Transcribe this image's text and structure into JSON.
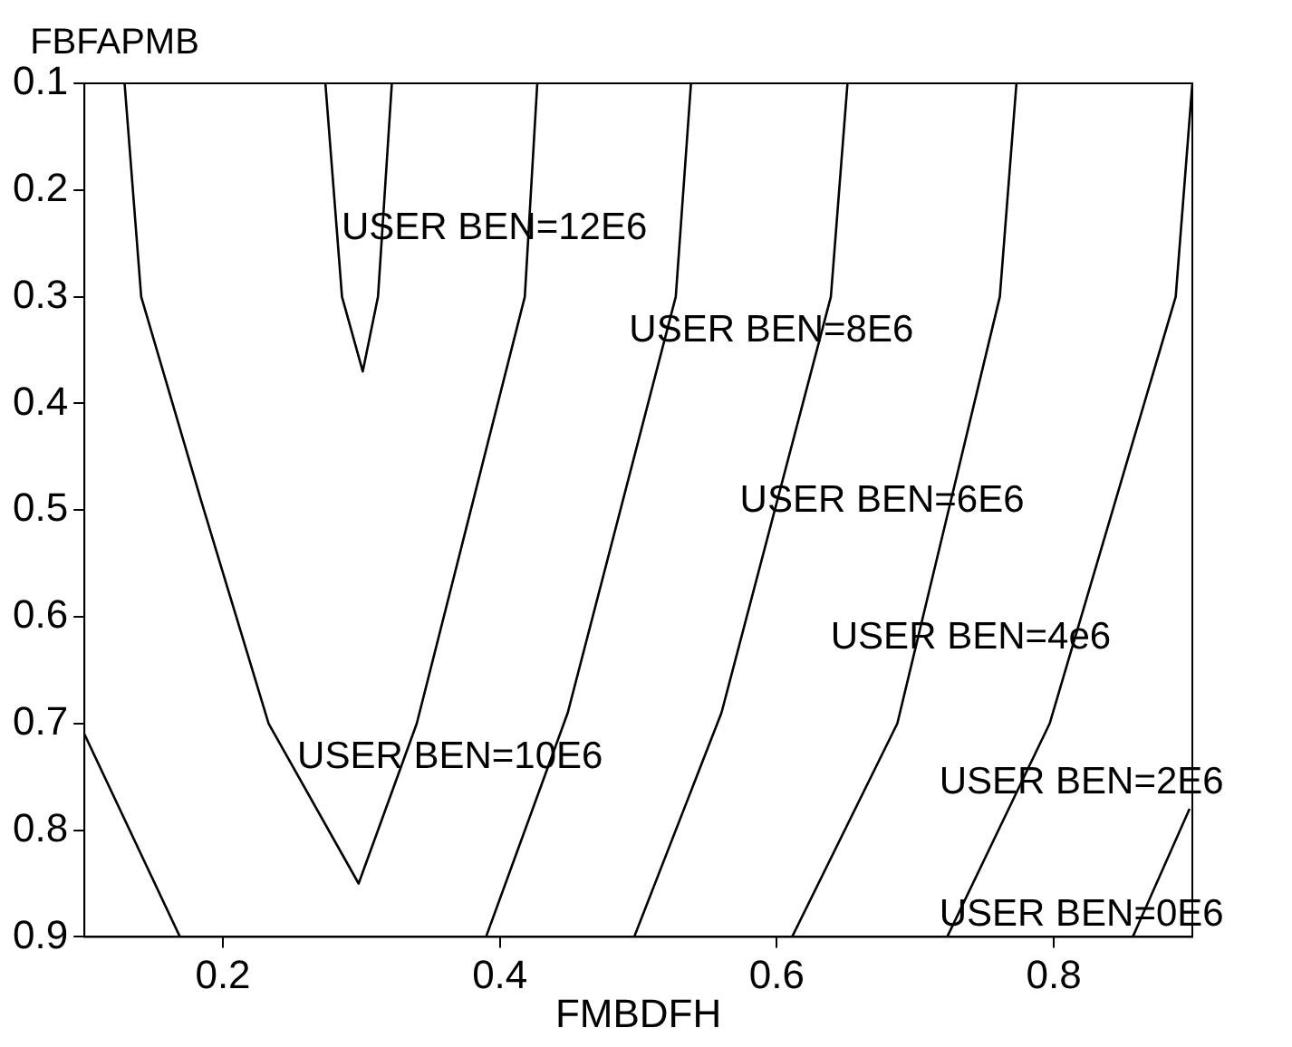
{
  "chart_data": {
    "type": "line",
    "xlabel": "FMBDFH",
    "ylabel": "FBFAPMB",
    "xlim": [
      0.1,
      0.9
    ],
    "ylim": [
      0.9,
      0.1
    ],
    "xticks": [
      0.2,
      0.4,
      0.6,
      0.8
    ],
    "yticks": [
      0.1,
      0.2,
      0.3,
      0.4,
      0.5,
      0.6,
      0.7,
      0.8,
      0.9
    ],
    "series": [
      {
        "color": "#000000",
        "x": [
          0.857,
          0.898
        ],
        "values": [
          0.9,
          0.78
        ]
      },
      {
        "color": "#000000",
        "x": [
          0.723,
          0.797,
          0.888,
          0.9
        ],
        "values": [
          0.9,
          0.7,
          0.3,
          0.1
        ]
      },
      {
        "color": "#000000",
        "x": [
          0.611,
          0.687,
          0.761,
          0.773
        ],
        "values": [
          0.9,
          0.7,
          0.3,
          0.1
        ]
      },
      {
        "color": "#000000",
        "x": [
          0.497,
          0.56,
          0.639,
          0.651
        ],
        "values": [
          0.9,
          0.69,
          0.3,
          0.1
        ]
      },
      {
        "color": "#000000",
        "x": [
          0.39,
          0.449,
          0.527,
          0.538
        ],
        "values": [
          0.9,
          0.69,
          0.3,
          0.1
        ]
      },
      {
        "color": "#000000",
        "x": [
          0.129,
          0.141,
          0.184,
          0.233,
          0.298,
          0.34,
          0.418,
          0.427
        ],
        "values": [
          0.1,
          0.3,
          0.49,
          0.7,
          0.85,
          0.7,
          0.3,
          0.1
        ]
      },
      {
        "color": "#000000",
        "x": [
          0.274,
          0.286,
          0.301,
          0.312,
          0.322
        ],
        "values": [
          0.1,
          0.3,
          0.37,
          0.3,
          0.1
        ]
      },
      {
        "color": "#000000",
        "x": [
          0.1,
          0.169
        ],
        "values": [
          0.71,
          0.9
        ]
      }
    ],
    "annotations": [
      "USER BEN=12E6",
      "USER BEN=8E6",
      "USER BEN=6E6",
      "USER BEN=4e6",
      "USER BEN=10E6",
      "USER BEN=2E6",
      "USER BEN=0E6"
    ]
  }
}
